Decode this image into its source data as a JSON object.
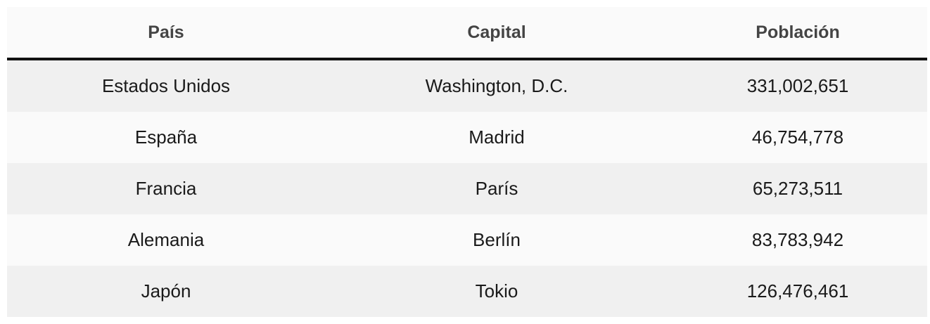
{
  "table": {
    "headers": [
      "País",
      "Capital",
      "Población"
    ],
    "rows": [
      [
        "Estados Unidos",
        "Washington, D.C.",
        "331,002,651"
      ],
      [
        "España",
        "Madrid",
        "46,754,778"
      ],
      [
        "Francia",
        "París",
        "65,273,511"
      ],
      [
        "Alemania",
        "Berlín",
        "83,783,942"
      ],
      [
        "Japón",
        "Tokio",
        "126,476,461"
      ]
    ]
  },
  "colors": {
    "header_background": "#fafafa",
    "header_text": "#444444",
    "header_rule": "#111111",
    "row_odd_background": "#f0f0f0",
    "row_even_background": "#fafafa"
  }
}
